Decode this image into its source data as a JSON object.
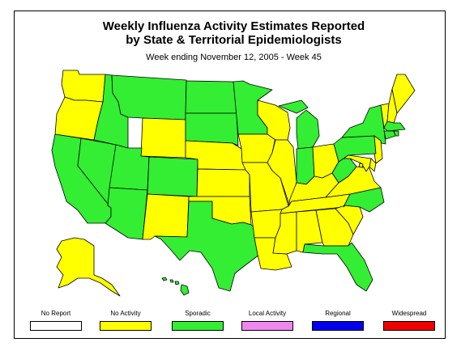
{
  "title_line1": "Weekly Influenza Activity Estimates Reported",
  "title_line2": "by State & Territorial Epidemiologists",
  "subtitle": "Week ending November 12, 2005 - Week 45",
  "colors": {
    "no_report": "#ffffff",
    "no_activity": "#ffff00",
    "sporadic": "#33ee33",
    "local": "#ee88ee",
    "regional": "#0000ee",
    "widespread": "#ee0000",
    "border": "#000000"
  },
  "legend": [
    {
      "label": "No Report",
      "color": "#ffffff"
    },
    {
      "label": "No Activity",
      "color": "#ffff00"
    },
    {
      "label": "Sporadic",
      "color": "#33ee33"
    },
    {
      "label": "Local Activity",
      "color": "#ee88ee"
    },
    {
      "label": "Regional",
      "color": "#0000ee"
    },
    {
      "label": "Widespread",
      "color": "#ee0000"
    }
  ],
  "states": {
    "WA": "no_activity",
    "OR": "no_activity",
    "CA": "sporadic",
    "NV": "sporadic",
    "ID": "sporadic",
    "MT": "sporadic",
    "WY": "no_activity",
    "UT": "sporadic",
    "AZ": "sporadic",
    "CO": "sporadic",
    "NM": "no_activity",
    "ND": "sporadic",
    "SD": "sporadic",
    "NE": "no_activity",
    "KS": "no_activity",
    "OK": "no_activity",
    "TX": "sporadic",
    "MN": "sporadic",
    "IA": "no_activity",
    "MO": "no_activity",
    "AR": "no_activity",
    "LA": "no_activity",
    "WI": "no_activity",
    "IL": "no_activity",
    "MI": "sporadic",
    "IN": "sporadic",
    "OH": "no_activity",
    "KY": "no_activity",
    "TN": "no_activity",
    "MS": "no_activity",
    "AL": "no_activity",
    "GA": "no_activity",
    "FL": "sporadic",
    "SC": "no_activity",
    "NC": "sporadic",
    "VA": "no_activity",
    "WV": "sporadic",
    "PA": "sporadic",
    "NY": "sporadic",
    "ME": "no_activity",
    "VT": "no_activity",
    "NH": "no_activity",
    "MA": "sporadic",
    "RI": "sporadic",
    "CT": "sporadic",
    "NJ": "no_activity",
    "DE": "no_activity",
    "MD": "no_activity",
    "DC": "no_activity",
    "AK": "no_activity",
    "HI": "sporadic"
  }
}
